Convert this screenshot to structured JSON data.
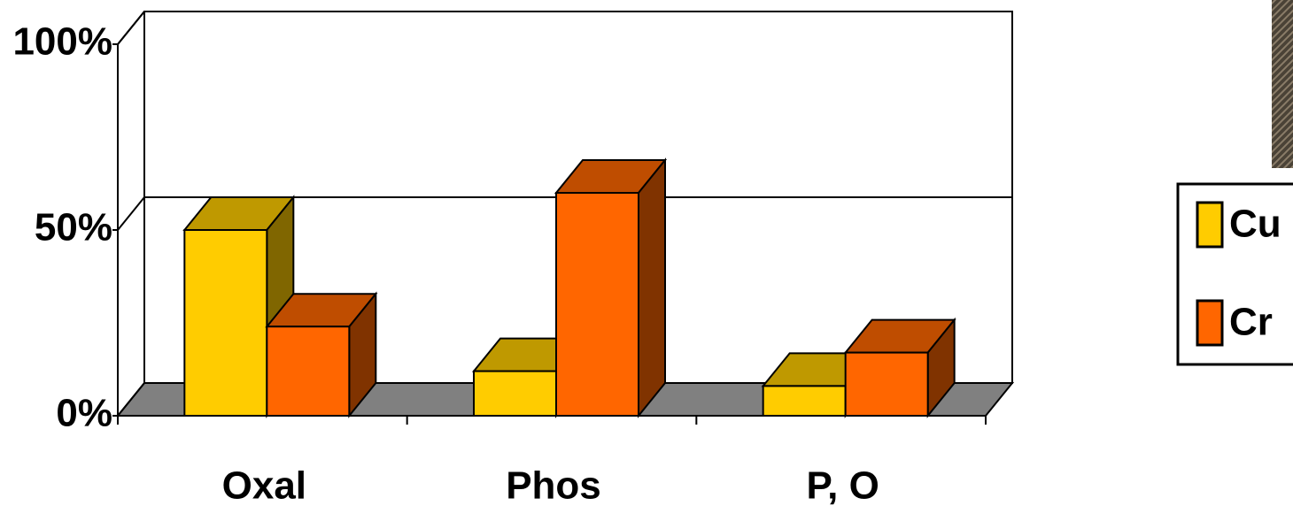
{
  "chart_data": {
    "type": "bar3d",
    "categories": [
      "Oxal",
      "Phos",
      "P, O"
    ],
    "series": [
      {
        "name": "Cu",
        "color": "#ffcc00",
        "values": [
          50,
          12,
          8
        ]
      },
      {
        "name": "Cr",
        "color": "#ff6600",
        "values": [
          24,
          60,
          17
        ]
      }
    ],
    "ylim": [
      0,
      100
    ],
    "yticks": [
      {
        "value": 0,
        "label": "0%"
      },
      {
        "value": 50,
        "label": "50%"
      },
      {
        "value": 100,
        "label": "100%"
      }
    ],
    "grid": true,
    "legend": "right"
  }
}
